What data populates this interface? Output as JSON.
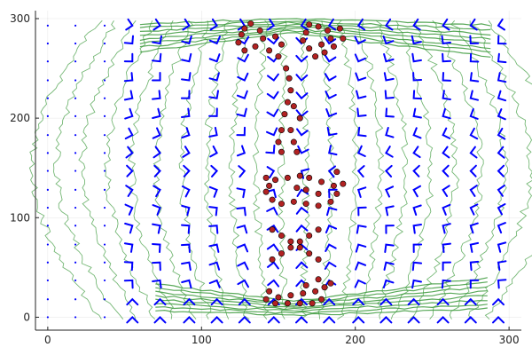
{
  "chart_data": {
    "type": "vector-field",
    "title": "",
    "xlabel": "",
    "ylabel": "",
    "xlim": [
      -8,
      308
    ],
    "ylim": [
      -13,
      308
    ],
    "xticks": [
      0,
      100,
      200,
      300
    ],
    "yticks": [
      0,
      100,
      200,
      300
    ],
    "xtick_labels": [
      "0",
      "100",
      "200",
      "300"
    ],
    "ytick_labels": [
      "0",
      "100",
      "200",
      "300"
    ],
    "grid": true,
    "legend": "none",
    "colors": {
      "arrows": "#0000ff",
      "contours": "#3c9a3c",
      "scatter_fill": "#b22222",
      "scatter_edge": "#000000"
    },
    "quiver": {
      "x_grid": [
        0,
        18,
        37,
        55,
        73,
        92,
        110,
        128,
        147,
        165,
        183,
        202,
        220,
        238,
        257,
        275,
        293
      ],
      "y_grid": [
        0,
        18,
        37,
        55,
        73,
        92,
        110,
        128,
        147,
        165,
        183,
        202,
        220,
        238,
        257,
        275,
        293
      ],
      "arrow_scale_note": "arrows point from the outer region toward the drawn characters; leftmost columns near zero"
    },
    "scatter_groups": [
      {
        "name": "",
        "points": [
          [
            128,
            290
          ],
          [
            132,
            295
          ],
          [
            138,
            288
          ],
          [
            140,
            280
          ],
          [
            135,
            272
          ],
          [
            128,
            268
          ],
          [
            124,
            276
          ],
          [
            126,
            284
          ],
          [
            144,
            268
          ],
          [
            150,
            262
          ],
          [
            152,
            274
          ],
          [
            148,
            282
          ],
          [
            170,
            294
          ],
          [
            176,
            292
          ],
          [
            182,
            288
          ],
          [
            184,
            280
          ],
          [
            178,
            274
          ],
          [
            170,
            270
          ],
          [
            166,
            278
          ],
          [
            168,
            286
          ],
          [
            174,
            262
          ],
          [
            180,
            266
          ],
          [
            186,
            272
          ],
          [
            190,
            290
          ],
          [
            192,
            280
          ]
        ]
      },
      {
        "name": "",
        "points": [
          [
            155,
            250
          ],
          [
            157,
            240
          ],
          [
            158,
            228
          ],
          [
            156,
            216
          ],
          [
            154,
            204
          ],
          [
            152,
            188
          ],
          [
            150,
            176
          ],
          [
            152,
            166
          ],
          [
            158,
            188
          ],
          [
            160,
            176
          ],
          [
            162,
            166
          ],
          [
            164,
            200
          ],
          [
            160,
            212
          ]
        ]
      },
      {
        "name": "",
        "points": [
          [
            142,
            140
          ],
          [
            148,
            138
          ],
          [
            156,
            140
          ],
          [
            164,
            142
          ],
          [
            170,
            140
          ],
          [
            178,
            136
          ],
          [
            186,
            132
          ],
          [
            188,
            124
          ],
          [
            184,
            116
          ],
          [
            176,
            112
          ],
          [
            168,
            114
          ],
          [
            160,
            116
          ],
          [
            152,
            114
          ],
          [
            146,
            118
          ],
          [
            142,
            126
          ],
          [
            144,
            132
          ],
          [
            162,
            130
          ],
          [
            168,
            128
          ],
          [
            176,
            124
          ],
          [
            192,
            134
          ],
          [
            188,
            146
          ]
        ]
      },
      {
        "name": "",
        "points": [
          [
            146,
            88
          ],
          [
            152,
            82
          ],
          [
            158,
            76
          ],
          [
            164,
            70
          ],
          [
            170,
            64
          ],
          [
            176,
            58
          ],
          [
            146,
            58
          ],
          [
            152,
            64
          ],
          [
            164,
            76
          ],
          [
            170,
            82
          ],
          [
            176,
            88
          ],
          [
            158,
            70
          ]
        ]
      },
      {
        "name": "",
        "points": [
          [
            142,
            18
          ],
          [
            150,
            20
          ],
          [
            158,
            22
          ],
          [
            166,
            24
          ],
          [
            174,
            26
          ],
          [
            180,
            30
          ],
          [
            184,
            34
          ],
          [
            178,
            18
          ],
          [
            172,
            14
          ],
          [
            164,
            14
          ],
          [
            156,
            14
          ],
          [
            148,
            14
          ],
          [
            144,
            26
          ],
          [
            168,
            32
          ],
          [
            176,
            38
          ]
        ]
      }
    ]
  }
}
